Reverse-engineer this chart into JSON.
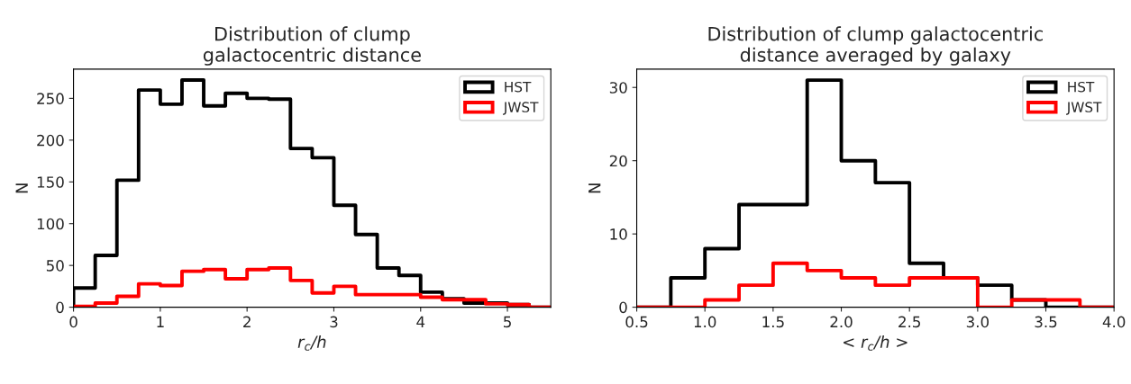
{
  "chart_data": [
    {
      "type": "histogram",
      "title": "Distribution of clump\ngalactocentric distance",
      "xlabel": "r$_{c}$/h",
      "ylabel": "N",
      "bins": [
        0,
        0.25,
        0.5,
        0.75,
        1,
        1.25,
        1.5,
        1.75,
        2,
        2.25,
        2.5,
        2.75,
        3,
        3.25,
        3.5,
        3.75,
        4,
        4.25,
        4.5,
        4.75,
        5,
        5.25,
        5.5
      ],
      "series": [
        {
          "name": "HST",
          "color": "#000000",
          "values": [
            23,
            62,
            152,
            260,
            243,
            272,
            241,
            256,
            250,
            249,
            190,
            179,
            122,
            87,
            47,
            38,
            18,
            10,
            5,
            5,
            3,
            0
          ]
        },
        {
          "name": "JWST",
          "color": "#ff0000",
          "values": [
            1,
            5,
            13,
            28,
            26,
            43,
            45,
            34,
            45,
            47,
            32,
            17,
            25,
            15,
            15,
            15,
            12,
            9,
            9,
            4,
            3,
            0
          ]
        }
      ],
      "xlim": [
        0,
        5.5
      ],
      "xticks": [
        0,
        1,
        2,
        3,
        4,
        5
      ],
      "ylim": [
        0,
        285
      ],
      "yticks": [
        0,
        50,
        100,
        150,
        200,
        250
      ],
      "legend": "top right",
      "grid": false
    },
    {
      "type": "histogram",
      "title": "Distribution of clump galactocentric\ndistance averaged by galaxy",
      "xlabel": "< r$_{c}$/h >",
      "ylabel": "N",
      "bins": [
        0.5,
        0.75,
        1,
        1.25,
        1.5,
        1.75,
        2,
        2.25,
        2.5,
        2.75,
        3,
        3.25,
        3.5,
        3.75,
        4
      ],
      "series": [
        {
          "name": "HST",
          "color": "#000000",
          "values": [
            0,
            4,
            8,
            14,
            14,
            31,
            20,
            17,
            6,
            4,
            3,
            1,
            0,
            0
          ]
        },
        {
          "name": "JWST",
          "color": "#ff0000",
          "values": [
            0,
            0,
            1,
            3,
            6,
            5,
            4,
            3,
            4,
            4,
            0,
            1,
            1,
            0
          ]
        }
      ],
      "xlim": [
        0.5,
        4
      ],
      "xticks": [
        {
          "value": 0.5,
          "label": "0.5"
        },
        {
          "value": 1,
          "label": "1.0"
        },
        {
          "value": 1.5,
          "label": "1.5"
        },
        {
          "value": 2,
          "label": "2.0"
        },
        {
          "value": 2.5,
          "label": "2.5"
        },
        {
          "value": 3,
          "label": "3.0"
        },
        {
          "value": 3.5,
          "label": "3.5"
        },
        {
          "value": 4,
          "label": "4.0"
        }
      ],
      "ylim": [
        0,
        32.5
      ],
      "yticks": [
        0,
        10,
        20,
        30
      ],
      "legend": "top right",
      "grid": false
    }
  ]
}
